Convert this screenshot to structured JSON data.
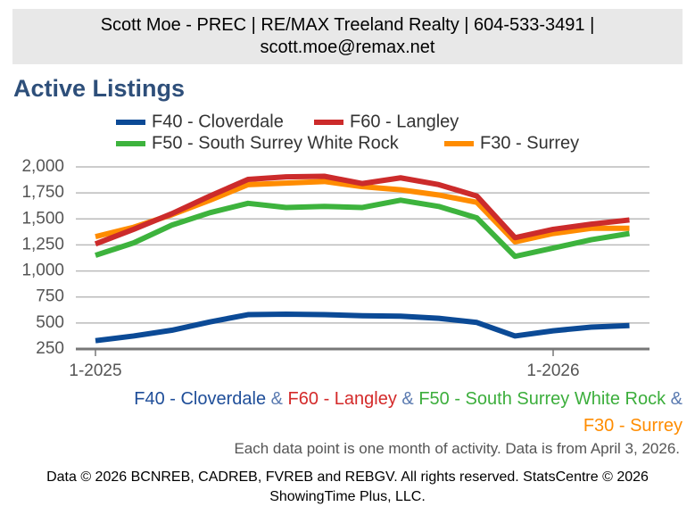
{
  "header": "Scott Moe - PREC | RE/MAX Treeland Realty | 604-533-3491 | scott.moe@remax.net",
  "chart_data": {
    "type": "line",
    "title": "Active Listings",
    "categories": [
      "1-2025",
      null,
      null,
      null,
      null,
      null,
      null,
      null,
      null,
      null,
      null,
      null,
      "1-2026",
      null,
      null
    ],
    "series": [
      {
        "name": "F40 - Cloverdale",
        "color": "#0b4a96",
        "values": [
          330,
          375,
          430,
          510,
          580,
          585,
          580,
          570,
          565,
          545,
          505,
          375,
          425,
          460,
          475
        ]
      },
      {
        "name": "F60 - Langley",
        "color": "#cc2b2b",
        "values": [
          1260,
          1400,
          1550,
          1720,
          1880,
          1905,
          1910,
          1840,
          1895,
          1830,
          1720,
          1320,
          1400,
          1450,
          1490
        ]
      },
      {
        "name": "F50 - South Surrey White Rock",
        "color": "#3db33d",
        "values": [
          1150,
          1270,
          1440,
          1560,
          1650,
          1610,
          1620,
          1610,
          1680,
          1620,
          1510,
          1140,
          1220,
          1300,
          1360
        ]
      },
      {
        "name": "F30 - Surrey",
        "color": "#ff8c00",
        "values": [
          1330,
          1420,
          1540,
          1680,
          1830,
          1845,
          1860,
          1810,
          1780,
          1730,
          1660,
          1280,
          1360,
          1410,
          1410
        ]
      }
    ],
    "ylim": [
      250,
      2000
    ],
    "yticks": [
      {
        "value": 250,
        "label": "250"
      },
      {
        "value": 500,
        "label": "500"
      },
      {
        "value": 750,
        "label": "750"
      },
      {
        "value": 1000,
        "label": "1,000"
      },
      {
        "value": 1250,
        "label": "1,250"
      },
      {
        "value": 1500,
        "label": "1,500"
      },
      {
        "value": 1750,
        "label": "1,750"
      },
      {
        "value": 2000,
        "label": "2,000"
      }
    ],
    "grid": true,
    "subtitle_parts": [
      {
        "text": "F40 - Cloverdale",
        "color": "#1f4e99"
      },
      {
        "text": "&",
        "color": "#5a7ab0"
      },
      {
        "text": "F60 - Langley",
        "color": "#d42a2a"
      },
      {
        "text": "&",
        "color": "#5a7ab0"
      },
      {
        "text": "F50 - South Surrey White Rock",
        "color": "#3cae3c"
      },
      {
        "text": "&",
        "color": "#5a7ab0"
      },
      {
        "text": "F30 - Surrey",
        "color": "#ff8c00"
      }
    ],
    "note": "Each data point is one month of activity. Data is from April 3, 2026."
  },
  "footer": "Data © 2026 BCNREB, CADREB, FVREB and REBGV. All rights reserved. StatsCentre © 2026 ShowingTime Plus, LLC."
}
